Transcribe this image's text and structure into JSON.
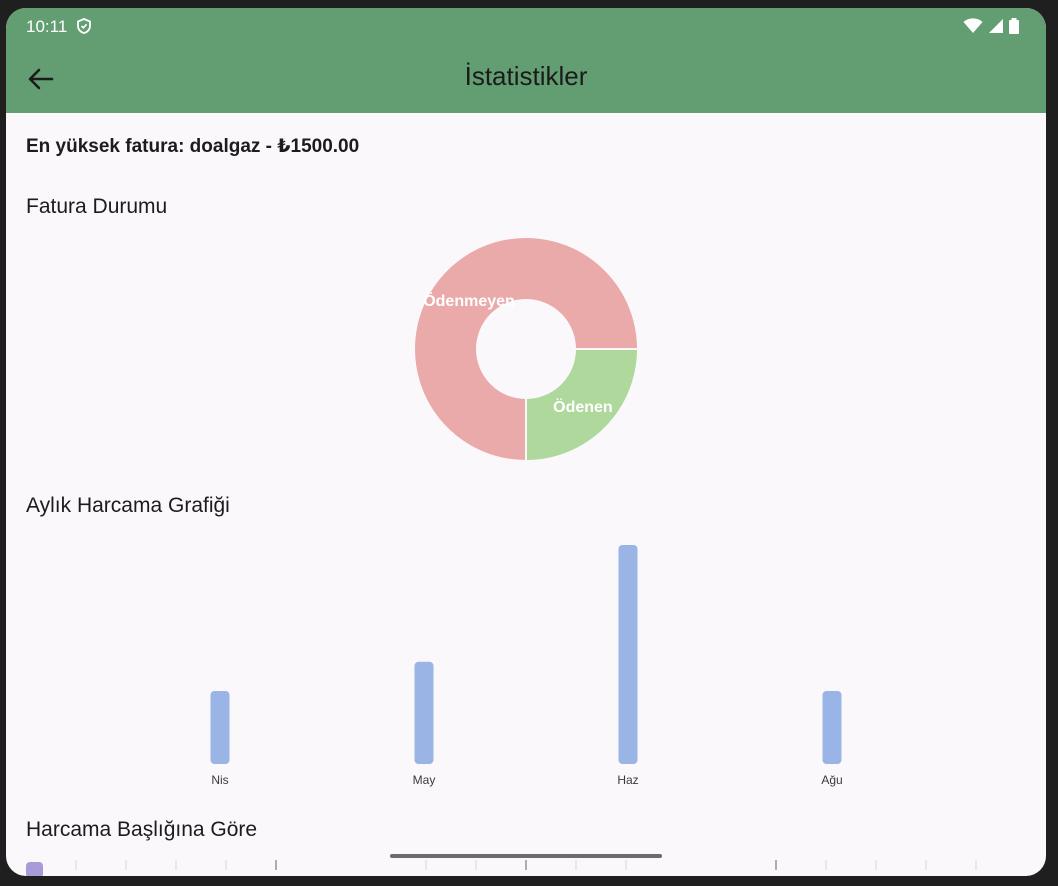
{
  "status_bar": {
    "time": "10:11",
    "icons": [
      "shield-icon",
      "wifi-icon",
      "signal-icon",
      "battery-icon"
    ]
  },
  "app_bar": {
    "title": "İstatistikler",
    "back_icon": "arrow-back-icon",
    "color": "#639e72"
  },
  "highest_bill": "En yüksek fatura: doalgaz - ₺1500.00",
  "sections": {
    "status_title": "Fatura Durumu",
    "monthly_title": "Aylık Harcama Grafiği",
    "category_title": "Harcama Başlığına Göre"
  },
  "chart_data": [
    {
      "type": "pie",
      "title": "Fatura Durumu",
      "donut": true,
      "labels": [
        "Ödenmeyen",
        "Ödenen"
      ],
      "values": [
        75,
        25
      ],
      "colors": [
        "#e9aaa9",
        "#aed89c"
      ]
    },
    {
      "type": "bar",
      "title": "Aylık Harcama Grafiği",
      "categories": [
        "Nis",
        "May",
        "Haz",
        "Ağu"
      ],
      "values": [
        250,
        350,
        750,
        250
      ],
      "ylim": [
        0,
        750
      ],
      "color": "#9ab5e5"
    }
  ]
}
